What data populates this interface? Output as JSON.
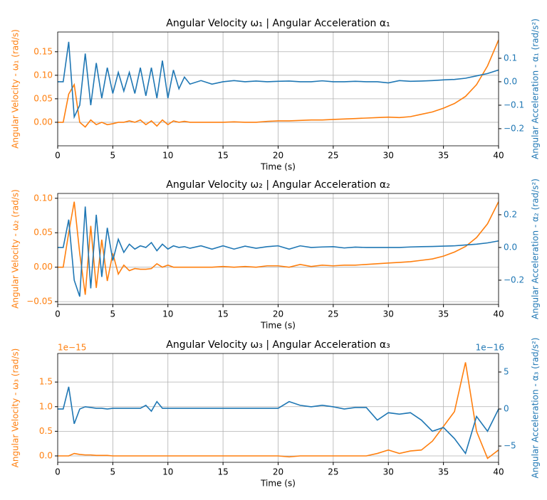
{
  "chart_data": [
    {
      "type": "line",
      "title": "Angular Velocity ω₁ | Angular Acceleration α₁",
      "xlabel": "Time (s)",
      "ylabel": "Angular Velocity - ω₁ (rad/s)",
      "y2label": "Angular Acceleration - α₁ (rad/s²)",
      "grid": true,
      "x": [
        0,
        0.5,
        1,
        1.5,
        2,
        2.5,
        3,
        3.5,
        4,
        4.5,
        5,
        5.5,
        6,
        6.5,
        7,
        7.5,
        8,
        8.5,
        9,
        9.5,
        10,
        10.5,
        11,
        11.5,
        12,
        13,
        14,
        15,
        16,
        17,
        18,
        19,
        20,
        21,
        22,
        23,
        24,
        25,
        26,
        27,
        28,
        29,
        30,
        31,
        32,
        33,
        34,
        35,
        36,
        37,
        38,
        39,
        40
      ],
      "xlim": [
        0,
        40
      ],
      "xticks": [
        0,
        5,
        10,
        15,
        20,
        25,
        30,
        35,
        40
      ],
      "ylim": [
        -0.05,
        0.192
      ],
      "yticks": [
        {
          "value": 0,
          "label": "0.00"
        },
        {
          "value": 0.05,
          "label": "0.05"
        },
        {
          "value": 0.1,
          "label": "0.10"
        },
        {
          "value": 0.15,
          "label": "0.15"
        }
      ],
      "y2lim": [
        -0.273,
        0.212
      ],
      "y2ticks": [
        {
          "value": -0.2,
          "label": "−0.2"
        },
        {
          "value": -0.1,
          "label": "−0.1"
        },
        {
          "value": 0,
          "label": "0.0"
        },
        0.1
      ],
      "series": [
        {
          "color": "#ff7f0e",
          "values": [
            0,
            0,
            0.06,
            0.08,
            0,
            -0.01,
            0.005,
            -0.005,
            0,
            -0.005,
            -0.003,
            0,
            0,
            0.003,
            0,
            0.005,
            -0.005,
            0.003,
            -0.008,
            0.005,
            -0.005,
            0.003,
            0,
            0.002,
            0,
            0,
            0,
            0,
            0.001,
            0,
            0,
            0.002,
            0.003,
            0.003,
            0.004,
            0.005,
            0.005,
            0.006,
            0.007,
            0.008,
            0.009,
            0.01,
            0.011,
            0.01,
            0.012,
            0.017,
            0.022,
            0.03,
            0.04,
            0.055,
            0.08,
            0.12,
            0.175
          ]
        },
        {
          "color": "#1f77b4",
          "axis": "y2",
          "values": [
            0,
            0,
            0.17,
            -0.15,
            -0.1,
            0.12,
            -0.1,
            0.08,
            -0.07,
            0.06,
            -0.05,
            0.04,
            -0.04,
            0.04,
            -0.05,
            0.06,
            -0.06,
            0.06,
            -0.07,
            0.09,
            -0.07,
            0.05,
            -0.03,
            0.02,
            -0.01,
            0.005,
            -0.01,
            0,
            0.005,
            0,
            0.003,
            0,
            0.002,
            0.003,
            0,
            0,
            0.004,
            0,
            0,
            0.002,
            0,
            0,
            -0.005,
            0.005,
            0.002,
            0.003,
            0.005,
            0.008,
            0.01,
            0.015,
            0.025,
            0.035,
            0.05
          ]
        }
      ]
    },
    {
      "type": "line",
      "title": "Angular Velocity ω₂ | Angular Acceleration α₂",
      "xlabel": "Time (s)",
      "ylabel": "Angular Velocity - ω₂ (rad/s)",
      "y2label": "Angular Acceleration - α₂ (rad/s²)",
      "grid": true,
      "x": [
        0,
        0.5,
        1,
        1.5,
        2,
        2.5,
        3,
        3.5,
        4,
        4.5,
        5,
        5.5,
        6,
        6.5,
        7,
        7.5,
        8,
        8.5,
        9,
        9.5,
        10,
        10.5,
        11,
        11.5,
        12,
        13,
        14,
        15,
        16,
        17,
        18,
        19,
        20,
        21,
        22,
        23,
        24,
        25,
        26,
        27,
        28,
        29,
        30,
        31,
        32,
        33,
        34,
        35,
        36,
        37,
        38,
        39,
        40
      ],
      "xlim": [
        0,
        40
      ],
      "xticks": [
        0,
        5,
        10,
        15,
        20,
        25,
        30,
        35,
        40
      ],
      "ylim": [
        -0.054,
        0.107
      ],
      "yticks": [
        {
          "value": -0.05,
          "label": "−0.05"
        },
        {
          "value": 0,
          "label": "0.00"
        },
        {
          "value": 0.05,
          "label": "0.05"
        },
        {
          "value": 0.1,
          "label": "0.10"
        }
      ],
      "y2lim": [
        -0.348,
        0.33
      ],
      "y2ticks": [
        {
          "value": -0.2,
          "label": "−0.2"
        },
        {
          "value": 0,
          "label": "0.0"
        },
        0.2
      ],
      "series": [
        {
          "color": "#ff7f0e",
          "values": [
            0,
            0,
            0.05,
            0.095,
            0.02,
            -0.04,
            0.06,
            -0.03,
            0.04,
            -0.02,
            0.02,
            -0.01,
            0.003,
            -0.005,
            -0.002,
            -0.003,
            -0.003,
            -0.002,
            0.005,
            0,
            0.003,
            0,
            0,
            0,
            0,
            0,
            0,
            0.001,
            0,
            0.001,
            0,
            0.002,
            0.002,
            0,
            0.004,
            0.001,
            0.003,
            0.002,
            0.003,
            0.003,
            0.004,
            0.005,
            0.006,
            0.007,
            0.008,
            0.01,
            0.012,
            0.016,
            0.022,
            0.03,
            0.043,
            0.063,
            0.095
          ]
        },
        {
          "color": "#1f77b4",
          "axis": "y2",
          "values": [
            0,
            0,
            0.17,
            -0.2,
            -0.3,
            0.25,
            -0.25,
            0.2,
            -0.18,
            0.12,
            -0.08,
            0.05,
            -0.03,
            0.02,
            -0.01,
            0.01,
            0,
            0.03,
            -0.02,
            0.02,
            -0.01,
            0.01,
            0,
            0.005,
            -0.005,
            0.01,
            -0.01,
            0.01,
            -0.01,
            0.008,
            -0.005,
            0.005,
            0.01,
            -0.01,
            0.01,
            0,
            0.003,
            0.005,
            -0.003,
            0.002,
            0,
            0,
            0,
            0,
            0.003,
            0.005,
            0.006,
            0.008,
            0.01,
            0.015,
            0.02,
            0.028,
            0.04
          ]
        }
      ]
    },
    {
      "type": "line",
      "title": "Angular Velocity ω₃ | Angular Acceleration α₃",
      "xlabel": "Time (s)",
      "ylabel": "Angular Velocity - ω₃ (rad/s)",
      "y2label": "Angular Acceleration - α₃ (rad/s²)",
      "grid": true,
      "offset_label": "1e−15",
      "y2_offset_label": "1e−16",
      "x": [
        0,
        0.5,
        1,
        1.5,
        2,
        2.5,
        3,
        3.5,
        4,
        4.5,
        5,
        5.5,
        6,
        6.5,
        7,
        7.5,
        8,
        8.5,
        9,
        9.5,
        10,
        10.5,
        11,
        11.5,
        12,
        13,
        14,
        15,
        16,
        17,
        18,
        19,
        20,
        21,
        22,
        23,
        24,
        25,
        26,
        27,
        28,
        29,
        30,
        31,
        32,
        33,
        34,
        35,
        36,
        37,
        38,
        39,
        40
      ],
      "xlim": [
        0,
        40
      ],
      "xticks": [
        0,
        5,
        10,
        15,
        20,
        25,
        30,
        35,
        40
      ],
      "ylim": [
        -0.13,
        2.08
      ],
      "yticks": [
        {
          "value": 0,
          "label": "0.0"
        },
        0.5,
        {
          "value": 1,
          "label": "1.0"
        },
        1.5
      ],
      "y2lim": [
        -7.2,
        7.5
      ],
      "y2ticks": [
        {
          "value": -5,
          "label": "−5"
        },
        0,
        5
      ],
      "series": [
        {
          "color": "#ff7f0e",
          "values": [
            0,
            0,
            0,
            0.05,
            0.03,
            0.02,
            0.02,
            0.01,
            0.01,
            0.01,
            0,
            0,
            0,
            0,
            0,
            0,
            0,
            0,
            0,
            0,
            0,
            0,
            0,
            0,
            0,
            0,
            0,
            0,
            0,
            0,
            0,
            0,
            0,
            -0.02,
            0,
            0,
            0,
            0,
            0,
            0,
            0,
            0.05,
            0.12,
            0.05,
            0.1,
            0.12,
            0.3,
            0.6,
            0.9,
            1.9,
            0.5,
            -0.05,
            0.12
          ]
        },
        {
          "color": "#1f77b4",
          "axis": "y2",
          "values": [
            0,
            0,
            3,
            -2,
            0,
            0.3,
            0.2,
            0.1,
            0.1,
            0,
            0.1,
            0.1,
            0.1,
            0.1,
            0.1,
            0.1,
            0.5,
            -0.3,
            1,
            0.1,
            0.1,
            0.1,
            0.1,
            0.1,
            0.1,
            0.1,
            0.1,
            0.1,
            0.1,
            0.1,
            0.1,
            0.1,
            0.1,
            1,
            0.5,
            0.3,
            0.5,
            0.3,
            0,
            0.2,
            0.2,
            -1.5,
            -0.5,
            -0.7,
            -0.5,
            -1.5,
            -3,
            -2.5,
            -4,
            -6,
            -1,
            -3,
            0
          ]
        }
      ]
    }
  ]
}
